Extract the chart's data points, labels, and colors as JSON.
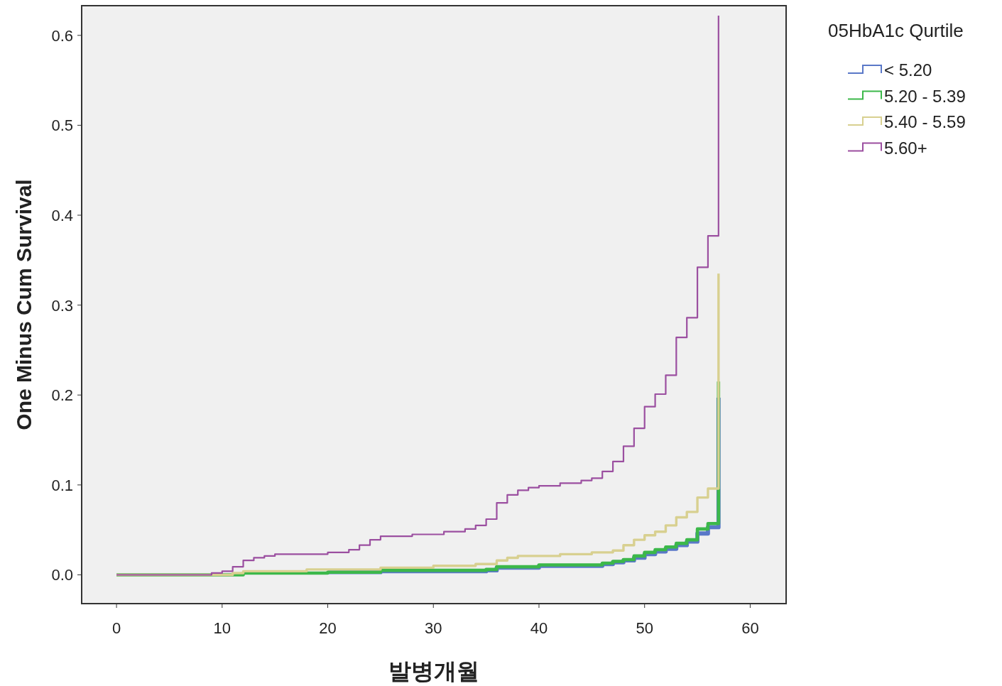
{
  "chart_data": {
    "type": "step",
    "xlabel": "발병개월",
    "ylabel": "One Minus Cum Survival",
    "legend_title": "05HbA1c Qurtile",
    "legend": "right",
    "grid": false,
    "xlim": [
      -3.3,
      63.4
    ],
    "ylim": [
      -0.032,
      0.633
    ],
    "xticks": [
      0,
      10,
      20,
      30,
      40,
      50,
      60
    ],
    "yticks": [
      {
        "value": 0,
        "label": "0.0"
      },
      {
        "value": 0.1,
        "label": "0.1"
      },
      {
        "value": 0.2,
        "label": "0.2"
      },
      {
        "value": 0.3,
        "label": "0.3"
      },
      {
        "value": 0.4,
        "label": "0.4"
      },
      {
        "value": 0.5,
        "label": "0.5"
      },
      {
        "value": 0.6,
        "label": "0.6"
      }
    ],
    "series": [
      {
        "name": "< 5.20",
        "color": "#5a78c8",
        "x": [
          20,
          25,
          35,
          36,
          40,
          46,
          47,
          48,
          49,
          50,
          51,
          52,
          53,
          54,
          55,
          56,
          57
        ],
        "values": [
          0.003,
          0.004,
          0.005,
          0.008,
          0.01,
          0.012,
          0.014,
          0.016,
          0.019,
          0.023,
          0.026,
          0.029,
          0.033,
          0.037,
          0.046,
          0.053,
          0.197
        ]
      },
      {
        "name": "5.20 - 5.39",
        "color": "#3cb84a",
        "x": [
          0,
          12,
          20,
          25,
          35,
          36,
          40,
          46,
          47,
          48,
          49,
          50,
          51,
          52,
          53,
          54,
          55,
          56,
          57
        ],
        "values": [
          0,
          0.002,
          0.003,
          0.005,
          0.006,
          0.009,
          0.011,
          0.013,
          0.015,
          0.017,
          0.021,
          0.025,
          0.028,
          0.031,
          0.035,
          0.039,
          0.051,
          0.057,
          0.215
        ]
      },
      {
        "name": "5.40 - 5.59",
        "color": "#d8d090",
        "x": [
          0,
          11,
          12,
          18,
          25,
          30,
          34,
          36,
          37,
          38,
          42,
          45,
          47,
          48,
          49,
          50,
          51,
          52,
          53,
          54,
          55,
          56,
          57
        ],
        "values": [
          0,
          0.002,
          0.004,
          0.006,
          0.008,
          0.01,
          0.012,
          0.016,
          0.019,
          0.021,
          0.023,
          0.025,
          0.027,
          0.033,
          0.039,
          0.044,
          0.048,
          0.055,
          0.064,
          0.07,
          0.086,
          0.096,
          0.335
        ]
      },
      {
        "name": "5.60+",
        "color": "#9b4fa0",
        "x": [
          0,
          9,
          10,
          11,
          12,
          13,
          14,
          15,
          20,
          22,
          23,
          24,
          25,
          28,
          31,
          33,
          34,
          35,
          36,
          37,
          38,
          39,
          40,
          42,
          44,
          45,
          46,
          47,
          48,
          49,
          50,
          51,
          52,
          53,
          54,
          55,
          56,
          57
        ],
        "values": [
          0,
          0.002,
          0.004,
          0.009,
          0.016,
          0.019,
          0.021,
          0.023,
          0.025,
          0.028,
          0.033,
          0.039,
          0.043,
          0.045,
          0.048,
          0.051,
          0.055,
          0.062,
          0.08,
          0.089,
          0.094,
          0.097,
          0.099,
          0.102,
          0.105,
          0.1075,
          0.115,
          0.126,
          0.143,
          0.163,
          0.187,
          0.201,
          0.222,
          0.264,
          0.286,
          0.342,
          0.377,
          0.622
        ]
      }
    ]
  }
}
